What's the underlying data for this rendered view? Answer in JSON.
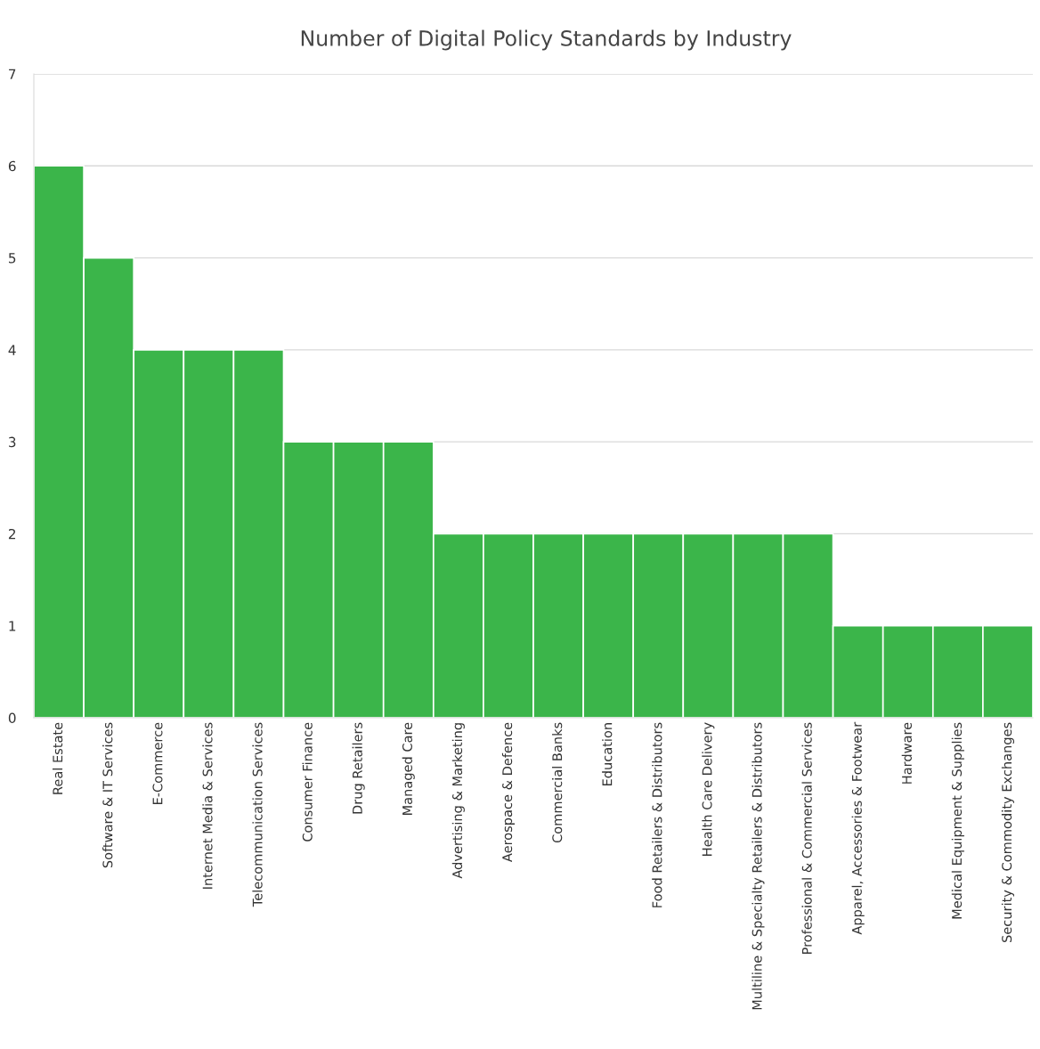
{
  "chart_data": {
    "type": "bar",
    "title": "Number of Digital Policy Standards by Industry",
    "categories": [
      "Real Estate",
      "Software & IT Services",
      "E-Commerce",
      "Internet Media & Services",
      "Telecommunication Services",
      "Consumer Finance",
      "Drug Retailers",
      "Managed Care",
      "Advertising & Marketing",
      "Aerospace & Defence",
      "Commercial Banks",
      "Education",
      "Food Retailers & Distributors",
      "Health Care Delivery",
      "Multiline & Specialty Retailers & Distributors",
      "Professional & Commercial Services",
      "Apparel, Accessories & Footwear",
      "Hardware",
      "Medical Equipment & Supplies",
      "Security & Commodity Exchanges"
    ],
    "values": [
      6,
      5,
      4,
      4,
      4,
      3,
      3,
      3,
      2,
      2,
      2,
      2,
      2,
      2,
      2,
      2,
      1,
      1,
      1,
      1
    ],
    "color": "#3bb54a",
    "ylim": [
      0,
      7
    ],
    "yticks": [
      0,
      1,
      2,
      3,
      4,
      5,
      6,
      7
    ],
    "grid": "y"
  }
}
